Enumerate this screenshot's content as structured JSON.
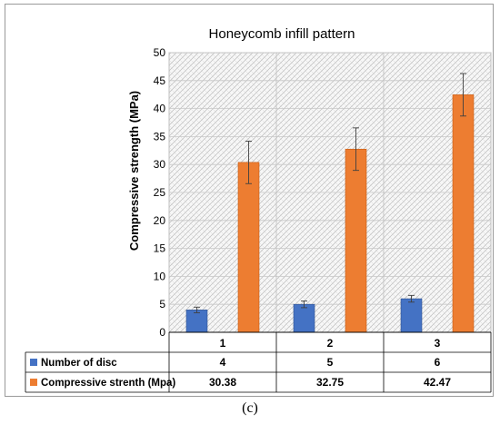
{
  "caption": "(c)",
  "chart_data": {
    "type": "bar",
    "title": "Honeycomb infill pattern",
    "ylabel": "Compressive strength (MPa)",
    "xlabel": "",
    "ylim": [
      0,
      50
    ],
    "yticks": [
      0,
      5,
      10,
      15,
      20,
      25,
      30,
      35,
      40,
      45,
      50
    ],
    "categories": [
      "1",
      "2",
      "3"
    ],
    "grid": true,
    "legend": "data-table",
    "series": [
      {
        "name": "Number of disc",
        "values": [
          4,
          5,
          6
        ],
        "table_values": [
          "4",
          "5",
          "6"
        ],
        "error": [
          0.5,
          0.6,
          0.6
        ],
        "color": "#4472c4"
      },
      {
        "name": "Compressive strenth (Mpa)",
        "values": [
          30.38,
          32.75,
          42.47
        ],
        "table_values": [
          "30.38",
          "32.75",
          "42.47"
        ],
        "error": [
          3.8,
          3.8,
          3.8
        ],
        "color": "#ed7d31"
      }
    ]
  }
}
